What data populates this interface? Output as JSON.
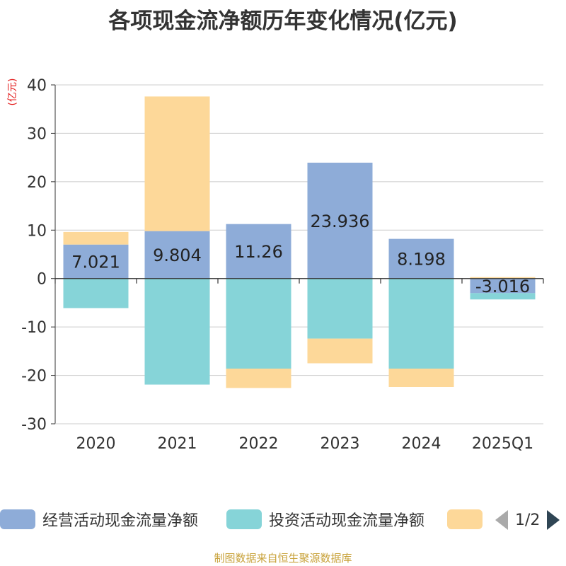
{
  "chart_data": {
    "type": "bar",
    "stacked": true,
    "title": "各项现金流净额历年变化情况(亿元)",
    "ylabel": "(亿元)",
    "ylim": [
      -30,
      40
    ],
    "yticks": [
      40,
      30,
      20,
      10,
      0,
      -10,
      -20,
      -30
    ],
    "grid": true,
    "categories": [
      "2020",
      "2021",
      "2022",
      "2023",
      "2024",
      "2025Q1"
    ],
    "series": [
      {
        "name": "经营活动现金流量净额",
        "color": "#8eacd8",
        "values": [
          7.021,
          9.804,
          11.26,
          23.936,
          8.198,
          -3.016
        ],
        "labels": [
          "7.021",
          "9.804",
          "11.26",
          "23.936",
          "8.198",
          "-3.016"
        ]
      },
      {
        "name": "投资活动现金流量净额",
        "color": "#86d4d8",
        "values": [
          -6.1,
          -21.9,
          -18.6,
          -12.4,
          -18.6,
          -1.3
        ]
      },
      {
        "name": "",
        "color": "#fdd899",
        "values": [
          2.6,
          27.8,
          -4.0,
          -5.1,
          -3.8,
          0.3
        ]
      }
    ],
    "legend_position": "bottom",
    "pager": "1/2"
  },
  "source": "制图数据来自恒生聚源数据库"
}
